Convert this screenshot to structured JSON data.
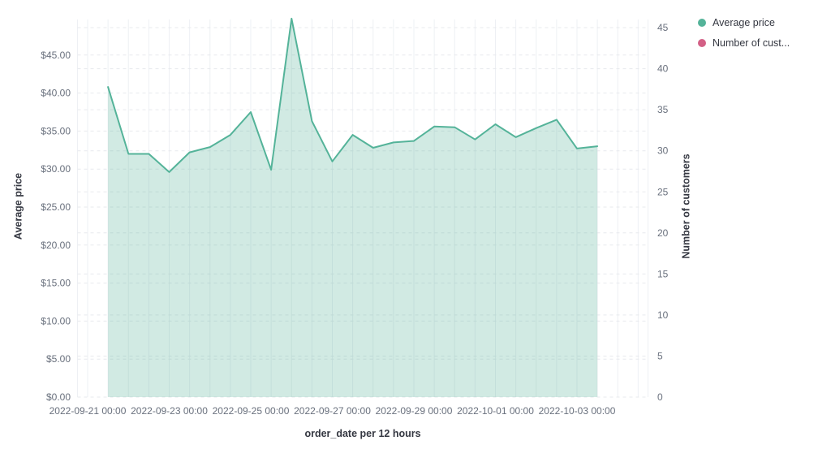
{
  "legend": {
    "items": [
      {
        "label": "Average price",
        "color": "#54B399"
      },
      {
        "label": "Number of cust...",
        "color": "#D36086"
      }
    ]
  },
  "chart_data": {
    "type": "area",
    "title": "",
    "xlabel": "order_date per 12 hours",
    "ylabel": "Average price",
    "ylabel_right": "Number of customers",
    "x_axis": {
      "title": "order_date per 12 hours",
      "ticks": [
        "2022-09-21 00:00",
        "2022-09-23 00:00",
        "2022-09-25 00:00",
        "2022-09-27 00:00",
        "2022-09-29 00:00",
        "2022-10-01 00:00",
        "2022-10-03 00:00"
      ],
      "bucket_interval": "12 hours"
    },
    "left_axis": {
      "title": "Average price",
      "ticks": [
        "$0.00",
        "$5.00",
        "$10.00",
        "$15.00",
        "$20.00",
        "$25.00",
        "$30.00",
        "$35.00",
        "$40.00",
        "$45.00"
      ],
      "tick_values": [
        0,
        5,
        10,
        15,
        20,
        25,
        30,
        35,
        40,
        45
      ]
    },
    "right_axis": {
      "title": "Number of customers",
      "ticks": [
        "0",
        "5",
        "10",
        "15",
        "20",
        "25",
        "30",
        "35",
        "40",
        "45"
      ],
      "tick_values": [
        0,
        5,
        10,
        15,
        20,
        25,
        30,
        35,
        40,
        45
      ]
    },
    "x": [
      "2022-09-21 12:00",
      "2022-09-22 00:00",
      "2022-09-22 12:00",
      "2022-09-23 00:00",
      "2022-09-23 12:00",
      "2022-09-24 00:00",
      "2022-09-24 12:00",
      "2022-09-25 00:00",
      "2022-09-25 12:00",
      "2022-09-26 00:00",
      "2022-09-26 12:00",
      "2022-09-27 00:00",
      "2022-09-27 12:00",
      "2022-09-28 00:00",
      "2022-09-28 12:00",
      "2022-09-29 00:00",
      "2022-09-29 12:00",
      "2022-09-30 00:00",
      "2022-09-30 12:00",
      "2022-10-01 00:00",
      "2022-10-01 12:00",
      "2022-10-02 00:00",
      "2022-10-02 12:00",
      "2022-10-03 00:00",
      "2022-10-03 12:00"
    ],
    "series": [
      {
        "name": "Average price",
        "axis": "left",
        "color": "#54B399",
        "fill_opacity": 0.27,
        "values": [
          40.8,
          32.0,
          32.0,
          29.6,
          32.2,
          32.9,
          34.5,
          37.5,
          29.9,
          49.8,
          36.3,
          31.0,
          34.5,
          32.8,
          33.5,
          33.7,
          35.6,
          35.5,
          33.9,
          35.9,
          34.2,
          35.4,
          36.5,
          32.7,
          33.0
        ]
      },
      {
        "name": "Number of cust...",
        "axis": "right",
        "color": "#D36086",
        "values": []
      }
    ]
  }
}
